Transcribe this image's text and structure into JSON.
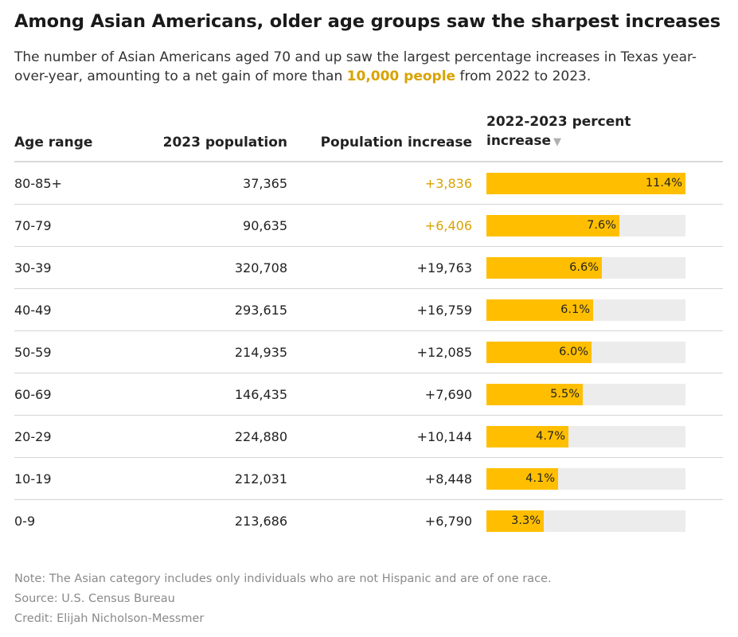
{
  "title": "Among Asian Americans, older age groups saw the sharpest increases",
  "subtitle": {
    "before": "The number of Asian Americans aged 70 and up saw the largest percentage increases in Texas year-over-year, amounting to a net gain of more than ",
    "highlight": "10,000 people",
    "after": " from 2022 to 2023."
  },
  "colors": {
    "bar": "#ffbf00",
    "track": "#ececec",
    "highlight": "#d9a300"
  },
  "table": {
    "columns": {
      "age": "Age range",
      "population": "2023 population",
      "increase": "Population increase",
      "percent": "2022-2023 percent increase",
      "sort_icon": "▼"
    }
  },
  "chart_data": {
    "type": "table",
    "title": "Among Asian Americans, older age groups saw the sharpest increases",
    "bar_column": "2022-2023 percent increase",
    "bar_max": 11.4,
    "rows": [
      {
        "age": "80-85+",
        "population": "37,365",
        "increase": "+3,836",
        "highlight": true,
        "percent": 11.4,
        "percent_label": "11.4%"
      },
      {
        "age": "70-79",
        "population": "90,635",
        "increase": "+6,406",
        "highlight": true,
        "percent": 7.6,
        "percent_label": "7.6%"
      },
      {
        "age": "30-39",
        "population": "320,708",
        "increase": "+19,763",
        "highlight": false,
        "percent": 6.6,
        "percent_label": "6.6%"
      },
      {
        "age": "40-49",
        "population": "293,615",
        "increase": "+16,759",
        "highlight": false,
        "percent": 6.1,
        "percent_label": "6.1%"
      },
      {
        "age": "50-59",
        "population": "214,935",
        "increase": "+12,085",
        "highlight": false,
        "percent": 6.0,
        "percent_label": "6.0%"
      },
      {
        "age": "60-69",
        "population": "146,435",
        "increase": "+7,690",
        "highlight": false,
        "percent": 5.5,
        "percent_label": "5.5%"
      },
      {
        "age": "20-29",
        "population": "224,880",
        "increase": "+10,144",
        "highlight": false,
        "percent": 4.7,
        "percent_label": "4.7%"
      },
      {
        "age": "10-19",
        "population": "212,031",
        "increase": "+8,448",
        "highlight": false,
        "percent": 4.1,
        "percent_label": "4.1%"
      },
      {
        "age": "0-9",
        "population": "213,686",
        "increase": "+6,790",
        "highlight": false,
        "percent": 3.3,
        "percent_label": "3.3%"
      }
    ]
  },
  "footer": {
    "note": "Note: The Asian category includes only individuals who are not Hispanic and are of one race.",
    "source": "Source: U.S. Census Bureau",
    "credit": "Credit: Elijah Nicholson-Messmer"
  }
}
